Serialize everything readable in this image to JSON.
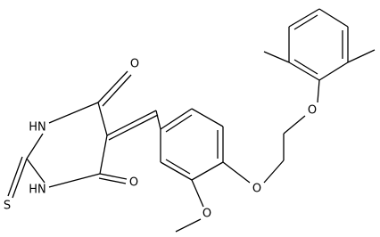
{
  "atoms": [
    {
      "label": "O"
    },
    {
      "label": "HN"
    },
    {
      "label": "S"
    },
    {
      "label": "HN"
    },
    {
      "label": "O"
    },
    {
      "label": "O"
    },
    {
      "label": "O"
    },
    {
      "label": "O"
    }
  ]
}
